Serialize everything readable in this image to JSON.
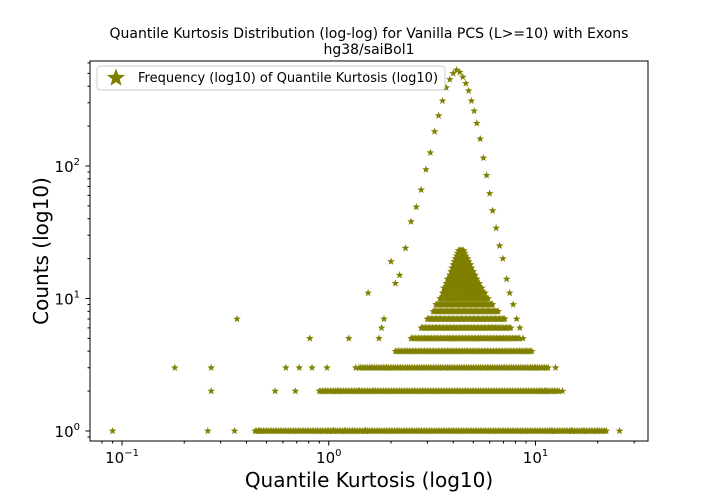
{
  "chart_data": {
    "type": "scatter",
    "title": "Quantile Kurtosis Distribution (log-log) for Vanilla PCS (L>=10) with Exons",
    "subtitle": "hg38/saiBol1",
    "xlabel": "Quantile Kurtosis (log10)",
    "ylabel": "Counts (log10)",
    "xscale": "log",
    "yscale": "log",
    "xlim": [
      0.07,
      35
    ],
    "ylim": [
      0.84,
      620
    ],
    "x_ticks": [
      {
        "base": "10",
        "exp": "−1",
        "value": 0.1
      },
      {
        "base": "10",
        "exp": "0",
        "value": 1
      },
      {
        "base": "10",
        "exp": "1",
        "value": 10
      }
    ],
    "y_ticks": [
      {
        "base": "10",
        "exp": "0",
        "value": 1
      },
      {
        "base": "10",
        "exp": "1",
        "value": 10
      },
      {
        "base": "10",
        "exp": "2",
        "value": 100
      }
    ],
    "grid": false,
    "legend": {
      "position": "top-left",
      "entries": [
        "Frequency (log10) of Quantile Kurtosis (log10)"
      ]
    },
    "marker": "star",
    "color": "#808000",
    "series": [
      {
        "name": "Frequency (log10) of Quantile Kurtosis (log10)",
        "points": [
          [
            0.09,
            1
          ],
          [
            0.18,
            3
          ],
          [
            0.26,
            1
          ],
          [
            0.27,
            2
          ],
          [
            0.27,
            3
          ],
          [
            0.35,
            1
          ],
          [
            0.36,
            7
          ],
          [
            0.46,
            1
          ],
          [
            0.55,
            2
          ],
          [
            0.62,
            3
          ],
          [
            0.69,
            2
          ],
          [
            0.72,
            3
          ],
          [
            0.81,
            5
          ],
          [
            0.83,
            3
          ],
          [
            0.88,
            1
          ],
          [
            0.98,
            3
          ],
          [
            1.0,
            1
          ],
          [
            1.05,
            1
          ],
          [
            1.1,
            2
          ],
          [
            1.2,
            1
          ],
          [
            1.25,
            5
          ],
          [
            1.3,
            1
          ],
          [
            1.35,
            3
          ],
          [
            1.4,
            2
          ],
          [
            1.5,
            1
          ],
          [
            1.55,
            11
          ],
          [
            1.6,
            3
          ],
          [
            1.65,
            2
          ],
          [
            1.75,
            5
          ],
          [
            1.8,
            6
          ],
          [
            1.85,
            7
          ],
          [
            1.9,
            3
          ],
          [
            2.0,
            19
          ],
          [
            2.1,
            13
          ],
          [
            2.2,
            15
          ],
          [
            2.35,
            24
          ],
          [
            2.5,
            38
          ],
          [
            2.65,
            49
          ],
          [
            2.8,
            66
          ],
          [
            2.95,
            94
          ],
          [
            3.1,
            126
          ],
          [
            3.25,
            182
          ],
          [
            3.4,
            240
          ],
          [
            3.55,
            310
          ],
          [
            3.7,
            390
          ],
          [
            3.85,
            450
          ],
          [
            4.0,
            500
          ],
          [
            4.15,
            530
          ],
          [
            4.3,
            510
          ],
          [
            4.45,
            470
          ],
          [
            4.6,
            420
          ],
          [
            4.75,
            370
          ],
          [
            4.9,
            310
          ],
          [
            5.05,
            260
          ],
          [
            5.2,
            210
          ],
          [
            5.4,
            160
          ],
          [
            5.6,
            115
          ],
          [
            5.8,
            85
          ],
          [
            6.0,
            62
          ],
          [
            6.2,
            46
          ],
          [
            6.45,
            34
          ],
          [
            6.7,
            25
          ],
          [
            6.95,
            20
          ],
          [
            7.25,
            14
          ],
          [
            7.5,
            11
          ],
          [
            7.8,
            9
          ],
          [
            8.1,
            7
          ],
          [
            8.4,
            6
          ],
          [
            8.7,
            5
          ],
          [
            9.1,
            4
          ],
          [
            9.5,
            3
          ],
          [
            10.0,
            3
          ],
          [
            10.5,
            2
          ],
          [
            11.2,
            2
          ],
          [
            12.0,
            1
          ],
          [
            12.5,
            3
          ],
          [
            13.5,
            2
          ],
          [
            15.0,
            1
          ],
          [
            17.0,
            1
          ],
          [
            20.0,
            1
          ],
          [
            25.5,
            1
          ]
        ],
        "bands": [
          {
            "y": 1,
            "x_from": 0.44,
            "x_to": 22,
            "n": 210
          },
          {
            "y": 2,
            "x_from": 0.9,
            "x_to": 13,
            "n": 150
          },
          {
            "y": 3,
            "x_from": 1.4,
            "x_to": 11.5,
            "n": 110
          },
          {
            "y": 4,
            "x_from": 2.1,
            "x_to": 9.6,
            "n": 90
          },
          {
            "y": 5,
            "x_from": 2.5,
            "x_to": 8.4,
            "n": 75
          },
          {
            "y": 6,
            "x_from": 2.8,
            "x_to": 7.6,
            "n": 65
          },
          {
            "y": 7,
            "x_from": 3.0,
            "x_to": 7.1,
            "n": 60
          },
          {
            "y": 8,
            "x_from": 3.2,
            "x_to": 6.6,
            "n": 55
          },
          {
            "y": 9,
            "x_from": 3.3,
            "x_to": 6.2,
            "n": 50
          },
          {
            "y": 10,
            "x_from": 3.45,
            "x_to": 5.9,
            "n": 46
          },
          {
            "y": 11,
            "x_from": 3.55,
            "x_to": 5.7,
            "n": 42
          },
          {
            "y": 12,
            "x_from": 3.6,
            "x_to": 5.5,
            "n": 40
          },
          {
            "y": 13,
            "x_from": 3.7,
            "x_to": 5.35,
            "n": 36
          },
          {
            "y": 14,
            "x_from": 3.75,
            "x_to": 5.2,
            "n": 32
          },
          {
            "y": 15,
            "x_from": 3.85,
            "x_to": 5.1,
            "n": 28
          },
          {
            "y": 16,
            "x_from": 3.9,
            "x_to": 5.0,
            "n": 24
          },
          {
            "y": 17,
            "x_from": 3.95,
            "x_to": 4.9,
            "n": 20
          },
          {
            "y": 18,
            "x_from": 4.0,
            "x_to": 4.85,
            "n": 18
          },
          {
            "y": 19,
            "x_from": 4.05,
            "x_to": 4.75,
            "n": 15
          },
          {
            "y": 20,
            "x_from": 4.1,
            "x_to": 4.7,
            "n": 12
          },
          {
            "y": 21,
            "x_from": 4.15,
            "x_to": 4.6,
            "n": 10
          },
          {
            "y": 22,
            "x_from": 4.2,
            "x_to": 4.55,
            "n": 8
          },
          {
            "y": 23,
            "x_from": 4.25,
            "x_to": 4.5,
            "n": 6
          }
        ]
      }
    ]
  }
}
